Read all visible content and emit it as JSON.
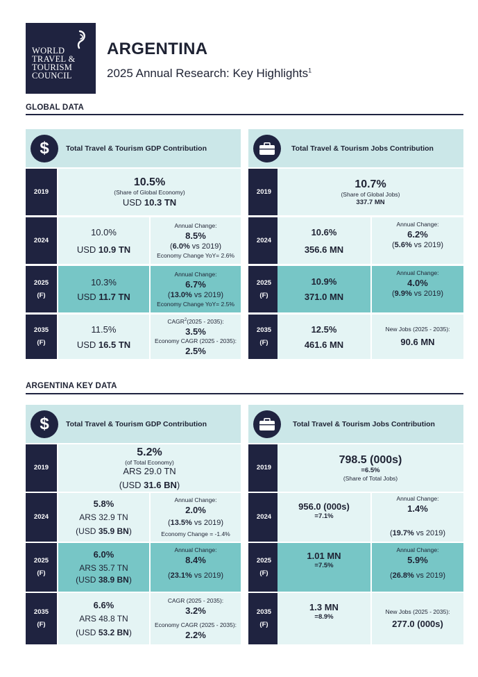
{
  "logo": {
    "lines": [
      "WORLD",
      "TRAVEL &",
      "TOURISM",
      "COUNCIL"
    ]
  },
  "header": {
    "title": "ARGENTINA",
    "subtitle": "2025 Annual Research: Key Highlights",
    "footnote_mark": "1"
  },
  "colors": {
    "navy": "#1f2340",
    "teal_light": "#cbe7e8",
    "teal_pale": "#e4f4f4",
    "teal_dark": "#77c6c6"
  },
  "icons": {
    "gdp": "dollar-icon",
    "jobs": "briefcase-icon"
  },
  "global": {
    "heading": "GLOBAL DATA",
    "gdp": {
      "title": "Total Travel & Tourism GDP Contribution",
      "icon_glyph": "$",
      "r2019": {
        "year": "2019",
        "pct": "10.5%",
        "note": "(Share of Global Economy)",
        "value_prefix": "USD",
        "value": "10.3 TN"
      },
      "r2024": {
        "year": "2024",
        "pct": "10.0%",
        "value_prefix": "USD",
        "value": "10.9 TN",
        "label": "Annual Change:",
        "change": "8.5%",
        "vs_pct": "6.0%",
        "vs_text": "vs 2019)",
        "paren": "(",
        "extra": "Economy Change YoY= 2.6%"
      },
      "r2025": {
        "year": "2025",
        "f": "(F)",
        "pct": "10.3%",
        "value_prefix": "USD",
        "value": "11.7 TN",
        "label": "Annual Change:",
        "change": "6.7%",
        "vs_pct": "13.0%",
        "vs_text": "vs 2019)",
        "paren": "(",
        "extra": "Economy Change YoY= 2.5%"
      },
      "r2035": {
        "year": "2035",
        "f": "(F)",
        "pct": "11.5%",
        "value_prefix": "USD",
        "value": "16.5 TN",
        "label_pre": "CAGR",
        "label_sup": "2",
        "label_post": "(2025 - 2035):",
        "change": "3.5%",
        "extra": "Economy CAGR (2025 - 2035):",
        "extra_val": "2.5%"
      }
    },
    "jobs": {
      "title": "Total Travel & Tourism Jobs Contribution",
      "r2019": {
        "year": "2019",
        "pct": "10.7%",
        "note": "(Share of Global Jobs)",
        "value": "337.7 MN"
      },
      "r2024": {
        "year": "2024",
        "pct": "10.6%",
        "value": "356.6 MN",
        "label": "Annual Change:",
        "change": "6.2%",
        "vs_pct": "5.6%",
        "vs_text": " vs 2019)",
        "paren": "("
      },
      "r2025": {
        "year": "2025",
        "f": "(F)",
        "pct": "10.9%",
        "value": "371.0 MN",
        "label": "Annual Change:",
        "change": "4.0%",
        "vs_pct": "9.9%",
        "vs_text": " vs 2019)",
        "paren": "("
      },
      "r2035": {
        "year": "2035",
        "f": "(F)",
        "pct": "12.5%",
        "value": "461.6 MN",
        "label": "New Jobs (2025 - 2035):",
        "change": "90.6 MN"
      }
    }
  },
  "country": {
    "heading": "ARGENTINA KEY DATA",
    "gdp": {
      "title": "Total Travel & Tourism GDP Contribution",
      "icon_glyph": "$",
      "r2019": {
        "year": "2019",
        "pct": "5.2%",
        "note": "(of Total Economy)",
        "local": "ARS 29.0 TN",
        "usd_pre": "(USD ",
        "usd": "31.6 BN",
        "usd_post": ")"
      },
      "r2024": {
        "year": "2024",
        "pct": "5.8%",
        "local": "ARS 32.9 TN",
        "usd_pre": "(USD ",
        "usd": "35.9 BN",
        "usd_post": ")",
        "label": "Annual Change:",
        "change": "2.0%",
        "vs_pct": "13.5%",
        "vs_text": " vs 2019)",
        "paren": "(",
        "extra": "Economy Change = -1.4%"
      },
      "r2025": {
        "year": "2025",
        "f": "(F)",
        "pct": "6.0%",
        "local": "ARS 35.7 TN",
        "usd_pre": "(USD ",
        "usd": "38.9 BN",
        "usd_post": ")",
        "label": "Annual Change:",
        "change": "8.4%",
        "vs_pct": "23.1%",
        "vs_text": " vs 2019)",
        "paren": "("
      },
      "r2035": {
        "year": "2035",
        "f": "(F)",
        "pct": "6.6%",
        "local": "ARS 48.8 TN",
        "usd_pre": "(USD ",
        "usd": "53.2 BN",
        "usd_post": ")",
        "label": "CAGR (2025 - 2035):",
        "change": "3.2%",
        "extra": "Economy CAGR (2025 - 2035):",
        "extra_val": "2.2%"
      }
    },
    "jobs": {
      "title": "Total Travel & Tourism Jobs Contribution",
      "r2019": {
        "year": "2019",
        "value": "798.5  (000s)",
        "share": "=6.5%",
        "note": "(Share of Total Jobs)"
      },
      "r2024": {
        "year": "2024",
        "value": "956.0  (000s)",
        "share": "=7.1%",
        "label": "Annual Change:",
        "change": "1.4%",
        "vs_pct": "19.7%",
        "vs_text": " vs 2019)",
        "paren": "("
      },
      "r2025": {
        "year": "2025",
        "f": "(F)",
        "value": "1.01 MN",
        "share": "=7.5%",
        "label": "Annual Change:",
        "change": "5.9%",
        "vs_pct": "26.8%",
        "vs_text": " vs 2019)",
        "paren": "("
      },
      "r2035": {
        "year": "2035",
        "f": "(F)",
        "value": "1.3 MN",
        "share": "=8.9%",
        "label": "New Jobs (2025 - 2035):",
        "change": "277.0  (000s)"
      }
    }
  }
}
